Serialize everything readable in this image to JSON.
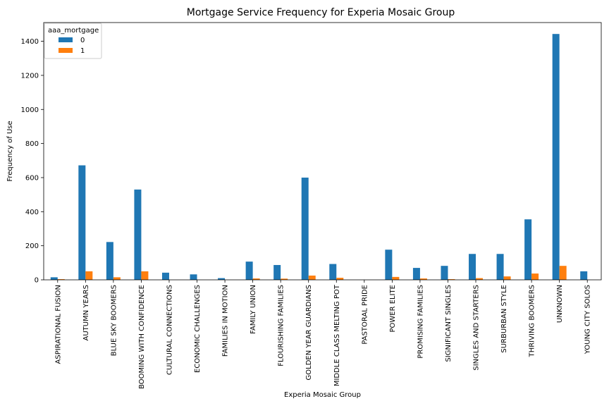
{
  "chart_data": {
    "type": "bar",
    "title": "Mortgage Service Frequency for Experia Mosaic Group",
    "xlabel": "Experia Mosaic Group",
    "ylabel": "Frequency of Use",
    "ylim": [
      0,
      1510
    ],
    "yticks": [
      0,
      200,
      400,
      600,
      800,
      1000,
      1200,
      1400
    ],
    "ytick_labels": [
      "0",
      "200",
      "400",
      "600",
      "800",
      "1000",
      "1200",
      "1400"
    ],
    "legend_title": "aaa_mortgage",
    "legend_position": "top-left",
    "categories": [
      "ASPIRATIONAL FUSION",
      "AUTUMN YEARS",
      "BLUE SKY BOOMERS",
      "BOOMING WITH CONFIDENCE",
      "CULTURAL CONNECTIONS",
      "ECONOMIC CHALLENGES",
      "FAMILIES IN MOTION",
      "FAMILY UNION",
      "FLOURISHING FAMILIES",
      "GOLDEN YEAR GUARDIANS",
      "MIDDLE CLASS MELTING POT",
      "PASTORAL PRIDE",
      "POWER ELITE",
      "PROMISING FAMILIES",
      "SIGNIFICANT SINGLES",
      "SINGLES AND STARTERS",
      "SURBURBAN STYLE",
      "THRIVING BOOMERS",
      "UNKNOWN",
      "YOUNG CITY SOLOS"
    ],
    "series": [
      {
        "name": "0",
        "color": "#1f77b4",
        "values": [
          15,
          672,
          222,
          530,
          42,
          32,
          10,
          107,
          87,
          600,
          93,
          0,
          177,
          70,
          82,
          152,
          152,
          355,
          1443,
          50
        ]
      },
      {
        "name": "1",
        "color": "#ff7f0e",
        "values": [
          4,
          50,
          15,
          50,
          0,
          0,
          0,
          8,
          7,
          25,
          12,
          0,
          17,
          8,
          4,
          10,
          20,
          37,
          82,
          0
        ]
      }
    ]
  }
}
